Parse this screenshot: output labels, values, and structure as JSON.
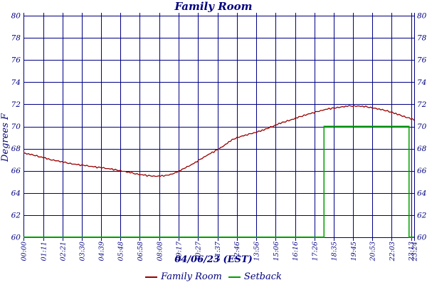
{
  "title": "Family Room",
  "colors": {
    "text_navy": "#000080",
    "grid": "#000085",
    "border": "#000080",
    "temperature_line": "#990000",
    "setback_line": "#00a000",
    "background": "#ffffff"
  },
  "y_axis": {
    "label": "Degrees F",
    "min": 60,
    "max": 80,
    "step": 2,
    "tick_labels": [
      "60",
      "62",
      "64",
      "66",
      "68",
      "70",
      "72",
      "74",
      "76",
      "78",
      "80"
    ],
    "labels_on_both_sides": true
  },
  "x_axis": {
    "label": "04/06/23 (EST)",
    "tick_labels": [
      "00:00",
      "01:11",
      "02:21",
      "03:30",
      "04:39",
      "05:48",
      "06:58",
      "08:08",
      "09:17",
      "10:27",
      "11:37",
      "12:46",
      "13:56",
      "15:06",
      "16:16",
      "17:26",
      "18:35",
      "19:45",
      "20:53",
      "22:03",
      "23:13",
      "23:24"
    ],
    "tick_minutes": [
      0,
      71,
      141,
      210,
      279,
      348,
      418,
      488,
      557,
      627,
      697,
      766,
      836,
      906,
      976,
      1046,
      1115,
      1185,
      1253,
      1323,
      1393,
      1404
    ],
    "start_minute": 0,
    "end_minute": 1404
  },
  "legend": [
    {
      "label": "Family Room",
      "color": "#990000"
    },
    {
      "label": "Setback",
      "color": "#00a000"
    }
  ],
  "chart_data": {
    "type": "line",
    "title": "Family Room",
    "xlabel": "04/06/23 (EST)",
    "ylabel": "Degrees F",
    "ylim": [
      60,
      80
    ],
    "grid": true,
    "legend_position": "bottom-center",
    "series": [
      {
        "name": "Family Room",
        "color": "#990000",
        "x_minutes": [
          0,
          30,
          60,
          90,
          120,
          150,
          180,
          210,
          240,
          270,
          300,
          330,
          360,
          390,
          420,
          450,
          480,
          510,
          540,
          570,
          600,
          630,
          660,
          690,
          720,
          750,
          780,
          810,
          840,
          870,
          900,
          930,
          960,
          990,
          1020,
          1050,
          1080,
          1110,
          1140,
          1170,
          1200,
          1230,
          1260,
          1290,
          1320,
          1350,
          1380,
          1404
        ],
        "values": [
          67.6,
          67.45,
          67.25,
          67.05,
          66.9,
          66.75,
          66.6,
          66.5,
          66.4,
          66.3,
          66.2,
          66.1,
          65.95,
          65.8,
          65.65,
          65.55,
          65.5,
          65.55,
          65.75,
          66.1,
          66.5,
          66.95,
          67.4,
          67.8,
          68.25,
          68.8,
          69.1,
          69.3,
          69.5,
          69.75,
          70.05,
          70.35,
          70.6,
          70.85,
          71.1,
          71.3,
          71.5,
          71.65,
          71.75,
          71.85,
          71.85,
          71.8,
          71.65,
          71.5,
          71.3,
          71.05,
          70.8,
          70.6
        ]
      },
      {
        "name": "Setback",
        "color": "#00a000",
        "x_minutes": [
          0,
          1080,
          1080,
          1385,
          1385,
          1404
        ],
        "values": [
          60,
          60,
          70,
          70,
          60,
          60
        ]
      }
    ],
    "noise_amplitude_degrees": 0.05,
    "quantization_degrees": 0.05
  }
}
